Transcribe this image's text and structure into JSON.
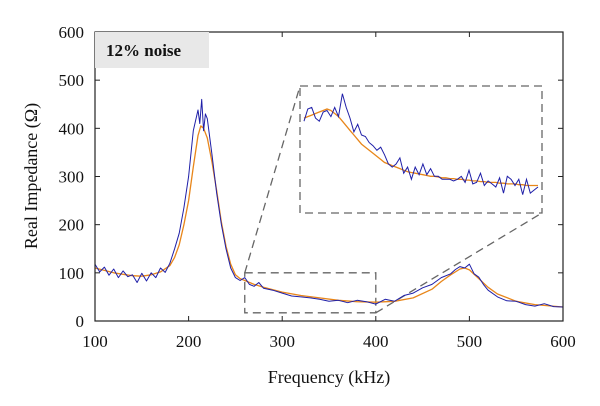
{
  "chart_data": {
    "type": "line",
    "annotation": "12% noise",
    "xlabel": "Frequency (kHz)",
    "ylabel": "Real Impedance (Ω)",
    "xlim": [
      100,
      600
    ],
    "ylim": [
      0,
      600
    ],
    "xticks": [
      100,
      200,
      300,
      400,
      500,
      600
    ],
    "yticks": [
      0,
      100,
      200,
      300,
      400,
      500,
      600
    ],
    "grid": false,
    "series": [
      {
        "color": "#1f1fa8",
        "style": "noisy",
        "x": [
          100,
          105,
          110,
          115,
          120,
          125,
          130,
          135,
          140,
          145,
          150,
          155,
          160,
          165,
          170,
          175,
          180,
          185,
          190,
          195,
          200,
          205,
          210,
          212,
          214,
          216,
          218,
          220,
          225,
          230,
          235,
          240,
          245,
          250,
          255,
          260,
          265,
          270,
          275,
          280,
          290,
          300,
          310,
          320,
          330,
          340,
          350,
          360,
          370,
          380,
          390,
          400,
          410,
          420,
          430,
          440,
          450,
          460,
          470,
          480,
          485,
          490,
          495,
          500,
          505,
          510,
          515,
          520,
          530,
          540,
          550,
          560,
          570,
          580,
          590,
          600
        ],
        "y": [
          118,
          102,
          112,
          95,
          108,
          90,
          104,
          92,
          96,
          80,
          99,
          83,
          100,
          90,
          110,
          101,
          120,
          150,
          182,
          235,
          300,
          395,
          438,
          410,
          460,
          395,
          430,
          420,
          345,
          265,
          200,
          150,
          110,
          90,
          84,
          90,
          76,
          72,
          80,
          68,
          64,
          58,
          52,
          50,
          48,
          45,
          41,
          43,
          38,
          43,
          40,
          35,
          45,
          41,
          53,
          58,
          69,
          76,
          90,
          98,
          107,
          113,
          110,
          118,
          98,
          91,
          76,
          64,
          50,
          42,
          41,
          34,
          31,
          36,
          30,
          29
        ]
      },
      {
        "color": "#e8861a",
        "style": "smooth",
        "x": [
          100,
          110,
          120,
          130,
          140,
          150,
          160,
          170,
          180,
          185,
          190,
          195,
          200,
          205,
          210,
          213,
          216,
          220,
          225,
          230,
          235,
          240,
          245,
          250,
          255,
          260,
          270,
          280,
          300,
          320,
          340,
          360,
          380,
          400,
          420,
          440,
          460,
          470,
          480,
          490,
          495,
          500,
          510,
          520,
          530,
          550,
          570,
          600
        ],
        "y": [
          110,
          105,
          100,
          97,
          94,
          93,
          96,
          102,
          115,
          132,
          158,
          200,
          250,
          320,
          385,
          405,
          400,
          380,
          330,
          270,
          205,
          155,
          118,
          96,
          88,
          84,
          76,
          70,
          60,
          53,
          48,
          43,
          40,
          39,
          41,
          48,
          66,
          82,
          96,
          108,
          110,
          106,
          88,
          70,
          56,
          41,
          34,
          29
        ]
      }
    ],
    "inset": {
      "source_xrange": [
        260,
        400
      ],
      "source_yrange": [
        17,
        100
      ],
      "xlim": [
        260,
        400
      ],
      "ylim": [
        17,
        100
      ],
      "noisy_y": [
        77,
        85,
        86,
        79,
        77,
        83,
        84,
        80,
        86,
        80,
        95,
        86,
        79,
        70,
        75,
        68,
        67,
        63,
        61,
        58,
        60,
        55,
        49,
        47,
        49,
        53,
        43,
        47,
        39,
        47,
        42,
        49,
        42,
        46,
        41,
        41,
        39,
        39,
        39,
        38,
        39,
        41,
        37,
        45,
        36,
        37,
        43,
        35,
        38,
        36,
        34,
        40,
        30,
        41,
        39,
        35,
        39,
        29,
        39,
        30,
        32,
        34
      ],
      "smooth_y": [
        79,
        80,
        81,
        82,
        83,
        84,
        85,
        84,
        82,
        80,
        77,
        74,
        71,
        68,
        65,
        62,
        60,
        58,
        56,
        54,
        52,
        50,
        49,
        48,
        47,
        46,
        45,
        44,
        43.5,
        43,
        42.5,
        42,
        41.5,
        41,
        41,
        40.5,
        40,
        40,
        39.5,
        39.5,
        39,
        39,
        38.5,
        38.5,
        38,
        38,
        37.5,
        37.5,
        37,
        37,
        37,
        36.5,
        36.5,
        36,
        36,
        36,
        35.5,
        35.5,
        35,
        35,
        35,
        35
      ]
    }
  }
}
